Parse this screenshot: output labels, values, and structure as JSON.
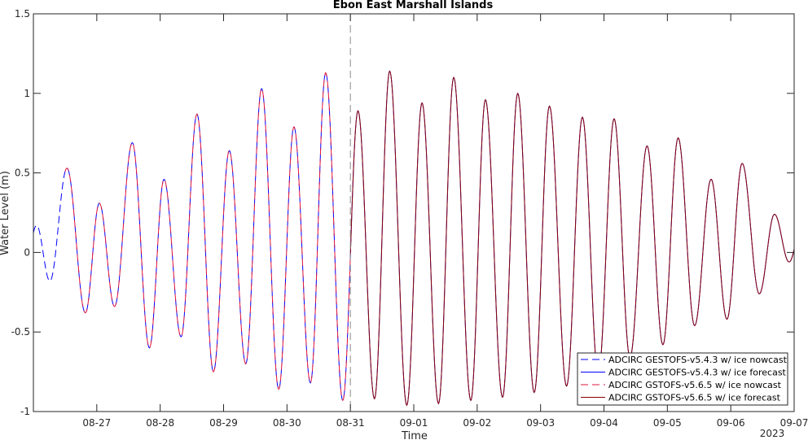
{
  "chart_data": {
    "type": "line",
    "title": "Ebon East Marshall Islands",
    "xlabel": "Time",
    "ylabel": "Water Level (m)",
    "year_label": "2023",
    "x_ticks": [
      "08-27",
      "08-28",
      "08-29",
      "08-30",
      "08-31",
      "09-01",
      "09-02",
      "09-03",
      "09-04",
      "09-05",
      "09-06",
      "09-07"
    ],
    "x_range": [
      "2023-08-26T00:00",
      "2023-09-07T00:00"
    ],
    "ylim": [
      -1,
      1.5
    ],
    "y_ticks": [
      -1,
      -0.5,
      0,
      0.5,
      1,
      1.5
    ],
    "y_tick_labels": [
      "-1",
      "-0.5",
      "0",
      "0.5",
      "1",
      "1.5"
    ],
    "forecast_start": "2023-08-31T00:00",
    "grid": false,
    "legend_position": "bottom-right",
    "extrema_days_since_start": [
      [
        0.05,
        0.17
      ],
      [
        0.26,
        -0.18
      ],
      [
        0.53,
        0.53
      ],
      [
        0.82,
        -0.38
      ],
      [
        1.04,
        0.31
      ],
      [
        1.28,
        -0.34
      ],
      [
        1.56,
        0.69
      ],
      [
        1.83,
        -0.6
      ],
      [
        2.06,
        0.46
      ],
      [
        2.33,
        -0.53
      ],
      [
        2.58,
        0.87
      ],
      [
        2.84,
        -0.75
      ],
      [
        3.09,
        0.64
      ],
      [
        3.35,
        -0.7
      ],
      [
        3.6,
        1.03
      ],
      [
        3.87,
        -0.86
      ],
      [
        4.11,
        0.79
      ],
      [
        4.37,
        -0.82
      ],
      [
        4.61,
        1.13
      ],
      [
        4.88,
        -0.93
      ],
      [
        5.12,
        0.89
      ],
      [
        5.38,
        -0.92
      ],
      [
        5.62,
        1.14
      ],
      [
        5.89,
        -0.96
      ],
      [
        6.13,
        0.94
      ],
      [
        6.39,
        -0.95
      ],
      [
        6.63,
        1.1
      ],
      [
        6.9,
        -0.93
      ],
      [
        7.13,
        0.96
      ],
      [
        7.4,
        -0.91
      ],
      [
        7.64,
        1.0
      ],
      [
        7.9,
        -0.88
      ],
      [
        8.14,
        0.92
      ],
      [
        8.41,
        -0.84
      ],
      [
        8.66,
        0.85
      ],
      [
        8.91,
        -0.77
      ],
      [
        9.16,
        0.84
      ],
      [
        9.41,
        -0.66
      ],
      [
        9.68,
        0.67
      ],
      [
        9.93,
        -0.58
      ],
      [
        10.17,
        0.72
      ],
      [
        10.43,
        -0.46
      ],
      [
        10.69,
        0.46
      ],
      [
        10.94,
        -0.42
      ],
      [
        11.18,
        0.56
      ],
      [
        11.45,
        -0.26
      ],
      [
        11.69,
        0.24
      ],
      [
        11.92,
        -0.06
      ]
    ],
    "series": [
      {
        "name": "ADCIRC GESTOFS-v5.4.3 w/ ice nowcast",
        "color": "#0000ff",
        "style": "dashed",
        "range": [
          "2023-08-26T00:00",
          "2023-08-31T00:00"
        ]
      },
      {
        "name": "ADCIRC GESTOFS-v5.4.3 w/ ice forecast",
        "color": "#0000ff",
        "style": "solid",
        "range": [
          "2023-08-31T00:00",
          "2023-09-07T00:00"
        ]
      },
      {
        "name": "ADCIRC GSTOFS-v5.6.5 w/ ice nowcast",
        "color": "#dc143c",
        "style": "dashed",
        "range": [
          "2023-08-26T12:00",
          "2023-08-31T00:00"
        ]
      },
      {
        "name": "ADCIRC GSTOFS-v5.6.5 w/ ice forecast",
        "color": "#8b0000",
        "style": "solid",
        "range": [
          "2023-08-31T00:00",
          "2023-09-07T00:00"
        ]
      }
    ]
  }
}
